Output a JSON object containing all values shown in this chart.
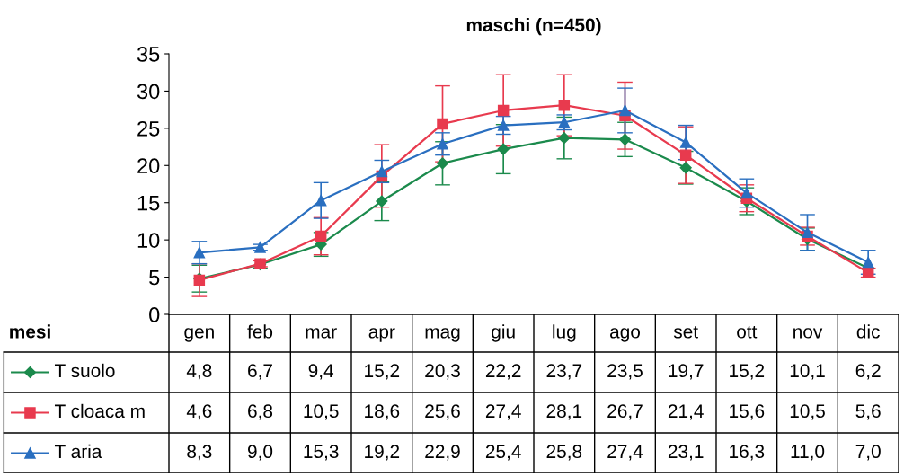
{
  "chart_data": {
    "type": "line",
    "title": "maschi (n=450)",
    "xlabel": "mesi",
    "categories": [
      "gen",
      "feb",
      "mar",
      "apr",
      "mag",
      "giu",
      "lug",
      "ago",
      "set",
      "ott",
      "nov",
      "dic"
    ],
    "ylim": [
      0,
      35
    ],
    "yticks": [
      0,
      5,
      10,
      15,
      20,
      25,
      30,
      35
    ],
    "grid": false,
    "legend": "bottom",
    "series": [
      {
        "name": "T suolo",
        "color": "#1b8a4c",
        "marker": "diamond",
        "values": [
          4.8,
          6.7,
          9.4,
          15.2,
          20.3,
          22.2,
          23.7,
          23.5,
          19.7,
          15.2,
          10.1,
          6.2
        ],
        "errors": [
          1.8,
          0.5,
          1.6,
          2.6,
          2.9,
          3.3,
          2.8,
          2.3,
          2.2,
          1.8,
          1.5,
          null
        ],
        "value_labels": [
          "4,8",
          "6,7",
          "9,4",
          "15,2",
          "20,3",
          "22,2",
          "23,7",
          "23,5",
          "19,7",
          "15,2",
          "10,1",
          "6,2"
        ]
      },
      {
        "name": "T cloaca m",
        "color": "#e83a4e",
        "marker": "square",
        "values": [
          4.6,
          6.8,
          10.5,
          18.6,
          25.6,
          27.4,
          28.1,
          26.7,
          21.4,
          15.6,
          10.5,
          5.6
        ],
        "errors": [
          2.2,
          0.4,
          2.5,
          4.2,
          5.1,
          4.8,
          4.1,
          4.5,
          3.8,
          1.8,
          1.2,
          0.6
        ],
        "value_labels": [
          "4,6",
          "6,8",
          "10,5",
          "18,6",
          "25,6",
          "27,4",
          "28,1",
          "26,7",
          "21,4",
          "15,6",
          "10,5",
          "5,6"
        ]
      },
      {
        "name": "T aria",
        "color": "#2a6fc0",
        "marker": "triangle",
        "values": [
          8.3,
          9.0,
          15.3,
          19.2,
          22.9,
          25.4,
          25.8,
          27.4,
          23.1,
          16.3,
          11.0,
          7.0
        ],
        "errors": [
          1.5,
          0.4,
          2.4,
          1.5,
          1.5,
          1.2,
          1.0,
          3.0,
          2.3,
          1.9,
          2.4,
          1.6
        ],
        "value_labels": [
          "8,3",
          "9,0",
          "15,3",
          "19,2",
          "22,9",
          "25,4",
          "25,8",
          "27,4",
          "23,1",
          "16,3",
          "11,0",
          "7,0"
        ]
      }
    ]
  }
}
